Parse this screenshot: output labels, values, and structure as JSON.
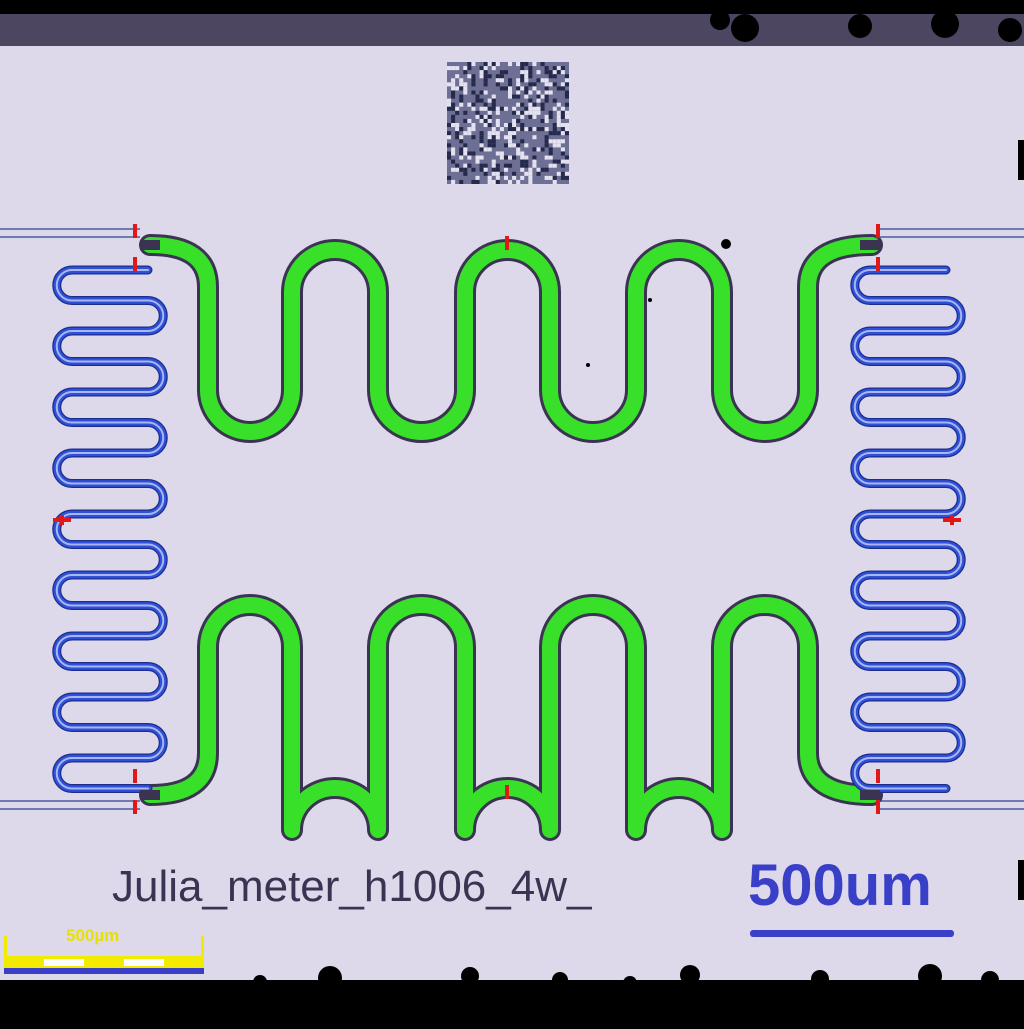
{
  "image": {
    "chip_label": "Julia_meter_h1006_4w_",
    "scale_text": "500um",
    "scale_bar_text": "500µm",
    "icons": [
      "qr-code-icon"
    ],
    "colors": {
      "background": "#000000",
      "die": "#ddd9ea",
      "die_edge": "#4c4660",
      "green_trace": "#38e02a",
      "green_outline": "#3a3452",
      "blue_trace": "#2f50d8",
      "blue_inner": "#aab6f2",
      "red_marker": "#e01818",
      "scale_blue": "#3a3fc8",
      "scale_yellow": "#f2ea00"
    }
  }
}
